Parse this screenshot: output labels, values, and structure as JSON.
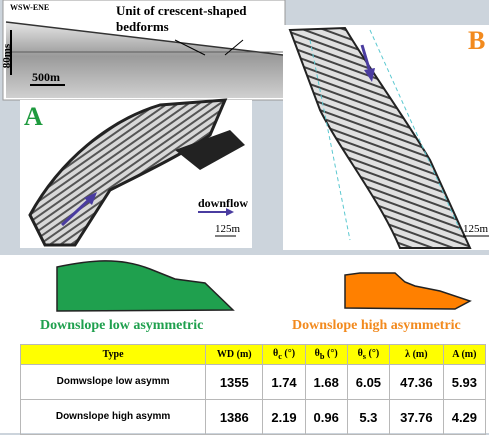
{
  "seismic": {
    "orientation": "WSW-ENE",
    "annotation": "Unit of crescent-shaped bedforms",
    "vertical_scale": "80ms",
    "horizontal_scale": "500m"
  },
  "panel_a": {
    "label": "A",
    "flow_label": "downflow",
    "scale": "125m"
  },
  "panel_b": {
    "label": "B",
    "scale": "125m"
  },
  "profiles": {
    "low": "Downslope low asymmetric",
    "high": "Downslope high asymmetric"
  },
  "table": {
    "header": [
      {
        "text": "Type"
      },
      {
        "text": "WD (m)"
      },
      {
        "text": "θ",
        "sub": "c",
        "unit": " (°)"
      },
      {
        "text": "θ",
        "sub": "b",
        "unit": " (°)"
      },
      {
        "text": "θ",
        "sub": "s",
        "unit": " (°)"
      },
      {
        "text": "λ (m)"
      },
      {
        "text": "A (m)"
      }
    ],
    "rows": [
      [
        "Domwslope low asymm",
        1355,
        1.74,
        1.68,
        6.05,
        47.36,
        5.93
      ],
      [
        "Downslope high asymm",
        1386,
        2.19,
        0.96,
        5.3,
        37.76,
        4.29
      ]
    ]
  }
}
